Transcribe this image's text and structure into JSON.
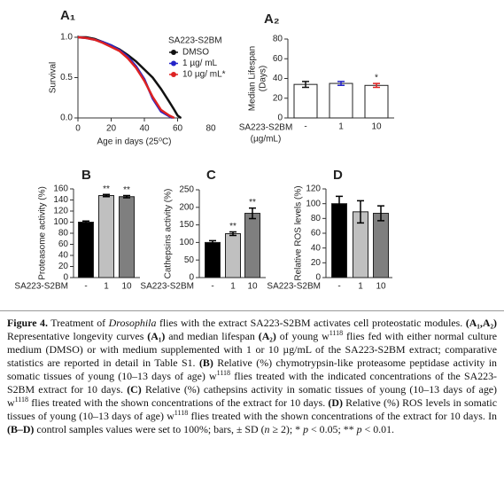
{
  "chart_data": [
    {
      "type": "line",
      "panel": "A₁",
      "xlabel": "Age in days (25⁰C)",
      "ylabel": "Survival",
      "xlim": [
        0,
        80
      ],
      "xticks": [
        0,
        20,
        40,
        60,
        80
      ],
      "ylim": [
        0,
        1
      ],
      "yticks": [
        {
          "value": 0,
          "label": "0.0"
        },
        {
          "value": 0.5,
          "label": "0.5"
        },
        {
          "value": 1,
          "label": "1.0"
        }
      ],
      "legend_title": "SA223-S2BM",
      "series": [
        {
          "name": "DMSO",
          "color": "#111111",
          "x": [
            0,
            5,
            10,
            15,
            20,
            25,
            30,
            35,
            40,
            45,
            50,
            55,
            58,
            60,
            62
          ],
          "values": [
            1,
            1,
            0.98,
            0.94,
            0.9,
            0.85,
            0.78,
            0.7,
            0.6,
            0.5,
            0.36,
            0.2,
            0.1,
            0.03,
            0
          ]
        },
        {
          "name": "1 µg/ mL",
          "color": "#2424c8",
          "x": [
            0,
            5,
            10,
            15,
            20,
            25,
            30,
            35,
            40,
            45,
            50,
            55,
            57
          ],
          "values": [
            1,
            0.99,
            0.97,
            0.94,
            0.9,
            0.84,
            0.76,
            0.64,
            0.48,
            0.24,
            0.08,
            0.02,
            0
          ]
        },
        {
          "name": "10 µg/ mL*",
          "color": "#dd2222",
          "x": [
            0,
            5,
            10,
            15,
            20,
            25,
            30,
            35,
            40,
            45,
            50,
            55,
            58
          ],
          "values": [
            1,
            0.99,
            0.97,
            0.93,
            0.88,
            0.83,
            0.74,
            0.62,
            0.46,
            0.26,
            0.1,
            0.03,
            0
          ]
        }
      ]
    },
    {
      "type": "bar",
      "panel": "A₂",
      "ylabel": [
        "Median Lifespan",
        "(Days)"
      ],
      "xlabel": [
        "SA223-S2BM",
        "(µg/mL)"
      ],
      "categories": [
        "-",
        "1",
        "10"
      ],
      "values": [
        34,
        35,
        33
      ],
      "errors": [
        3,
        2,
        2
      ],
      "colors": [
        "#ffffff",
        "#ffffff",
        "#ffffff"
      ],
      "error_colors": [
        "#111111",
        "#2424c8",
        "#dd2222"
      ],
      "ylim": [
        0,
        80
      ],
      "yticks": [
        0,
        20,
        40,
        60,
        80
      ],
      "annotations": [
        {
          "index": 2,
          "text": "*",
          "color": "#dd2222"
        }
      ]
    },
    {
      "type": "bar",
      "panel": "B",
      "ylabel": "Proteasome activity (%)",
      "xlabel": "SA223-S2BM",
      "categories": [
        "-",
        "1",
        "10"
      ],
      "values": [
        100,
        148,
        146
      ],
      "errors": [
        2,
        2,
        2
      ],
      "colors": [
        "#000000",
        "#c0c0c0",
        "#7f7f7f"
      ],
      "error_colors": [
        "#000000",
        "#000000",
        "#000000"
      ],
      "ylim": [
        0,
        160
      ],
      "yticks": [
        0,
        20,
        40,
        60,
        80,
        100,
        120,
        140,
        160
      ],
      "annotations": [
        {
          "index": 1,
          "text": "**",
          "color": "#000000"
        },
        {
          "index": 2,
          "text": "**",
          "color": "#000000"
        }
      ]
    },
    {
      "type": "bar",
      "panel": "C",
      "ylabel": "Cathepsins activity (%)",
      "xlabel": "SA223-S2BM",
      "categories": [
        "-",
        "1",
        "10"
      ],
      "values": [
        100,
        125,
        183
      ],
      "errors": [
        5,
        5,
        15
      ],
      "colors": [
        "#000000",
        "#c0c0c0",
        "#7f7f7f"
      ],
      "error_colors": [
        "#000000",
        "#000000",
        "#000000"
      ],
      "ylim": [
        0,
        250
      ],
      "yticks": [
        0,
        50,
        100,
        150,
        200,
        250
      ],
      "annotations": [
        {
          "index": 1,
          "text": "**",
          "color": "#000000"
        },
        {
          "index": 2,
          "text": "**",
          "color": "#000000"
        }
      ]
    },
    {
      "type": "bar",
      "panel": "D",
      "ylabel": "Relative ROS levels (%)",
      "xlabel": "SA223-S2BM",
      "categories": [
        "-",
        "1",
        "10"
      ],
      "values": [
        100,
        89,
        87
      ],
      "errors": [
        10,
        15,
        10
      ],
      "colors": [
        "#000000",
        "#c0c0c0",
        "#7f7f7f"
      ],
      "error_colors": [
        "#000000",
        "#000000",
        "#000000"
      ],
      "ylim": [
        0,
        120
      ],
      "yticks": [
        0,
        20,
        40,
        60,
        80,
        100,
        120
      ]
    }
  ],
  "caption": {
    "runs": [
      "Figure 4.",
      " Treatment of ",
      "Drosophila",
      " flies with the extract SA223-S2BM activates cell proteostatic modules. ",
      "(A₁,A₂)",
      " Representative longevity curves ",
      "(A₁)",
      " and median lifespan ",
      "(A₂)",
      " of young w",
      "1118",
      " flies fed with either normal culture medium (DMSO) or with medium supplemented with 1 or 10 µg/mL of the SA223-S2BM extract; comparative statistics are reported in detail in Table S1. ",
      "(B)",
      " Relative (%) chymotrypsin-like proteasome peptidase activity in somatic tissues of young (10–13 days of age) w",
      "1118",
      " flies treated with the indicated concentrations of the SA223-S2BM extract for 10 days. ",
      "(C)",
      " Relative (%) cathepsins activity in somatic tissues of young (10–13 days of age) w",
      "1118",
      " flies treated with the shown concentrations of the extract for 10 days. ",
      "(D)",
      " Relative (%) ROS levels in somatic tissues of young (10–13 days of age) w",
      "1118",
      " flies treated with the shown concentrations of the extract for 10 days. In ",
      "(B–D)",
      " control samples values were set to 100%; bars, ± SD (",
      "n",
      " ≥ 2); * ",
      "p",
      " < 0.05; ** ",
      "p",
      " < 0.01."
    ]
  }
}
